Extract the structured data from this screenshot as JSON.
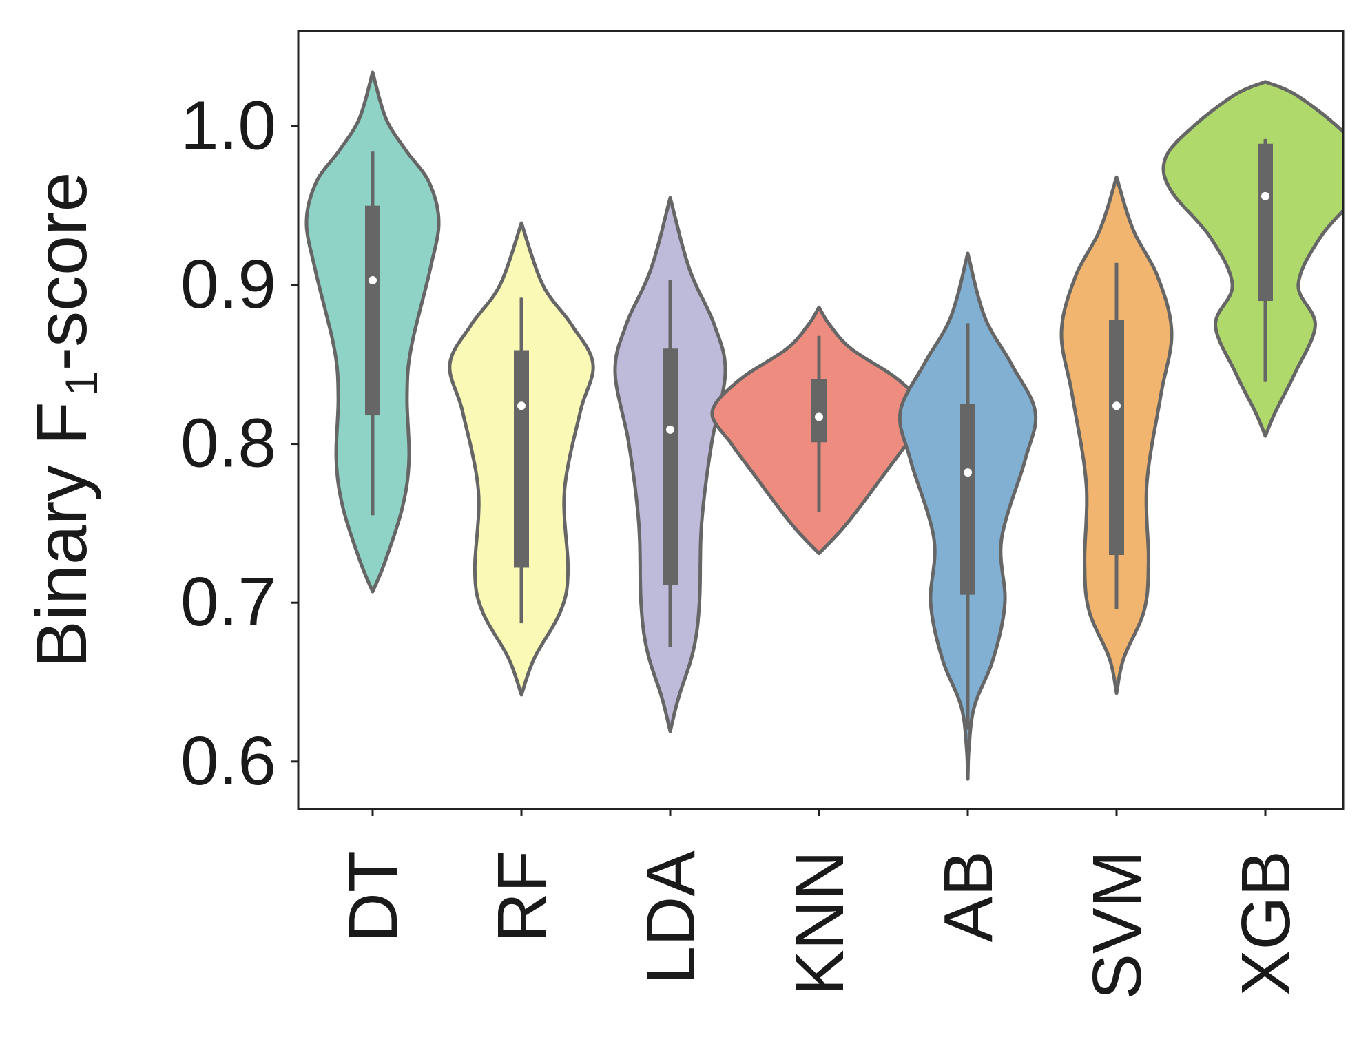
{
  "chart_data": {
    "type": "violin",
    "title": "",
    "xlabel": "",
    "ylabel": "Binary F",
    "ylabel_subscript": "1",
    "ylabel_suffix": "-score",
    "ylim": [
      0.57,
      1.06
    ],
    "yticks": [
      0.6,
      0.7,
      0.8,
      0.9,
      1.0
    ],
    "ytick_labels": [
      "0.6",
      "0.7",
      "0.8",
      "0.9",
      "1.0"
    ],
    "grid": false,
    "categories": [
      "DT",
      "RF",
      "LDA",
      "KNN",
      "AB",
      "SVM",
      "XGB"
    ],
    "series": [
      {
        "category": "DT",
        "color": "#8fd3c7",
        "min": 0.755,
        "q1": 0.818,
        "median": 0.903,
        "q3": 0.95,
        "max": 0.984,
        "range": [
          0.707,
          1.034
        ],
        "profile": [
          [
            0.707,
            0
          ],
          [
            0.725,
            0.18
          ],
          [
            0.76,
            0.45
          ],
          [
            0.79,
            0.55
          ],
          [
            0.83,
            0.52
          ],
          [
            0.86,
            0.58
          ],
          [
            0.91,
            0.87
          ],
          [
            0.94,
            1.0
          ],
          [
            0.965,
            0.85
          ],
          [
            0.985,
            0.5
          ],
          [
            1.005,
            0.2
          ],
          [
            1.034,
            0
          ]
        ]
      },
      {
        "category": "RF",
        "color": "#fafab6",
        "min": 0.687,
        "q1": 0.722,
        "median": 0.824,
        "q3": 0.859,
        "max": 0.892,
        "range": [
          0.642,
          0.939
        ],
        "profile": [
          [
            0.642,
            0
          ],
          [
            0.665,
            0.18
          ],
          [
            0.695,
            0.55
          ],
          [
            0.72,
            0.65
          ],
          [
            0.77,
            0.6
          ],
          [
            0.82,
            0.82
          ],
          [
            0.85,
            1.0
          ],
          [
            0.875,
            0.7
          ],
          [
            0.9,
            0.3
          ],
          [
            0.939,
            0
          ]
        ]
      },
      {
        "category": "LDA",
        "color": "#bebada",
        "min": 0.672,
        "q1": 0.711,
        "median": 0.809,
        "q3": 0.86,
        "max": 0.903,
        "range": [
          0.619,
          0.955
        ],
        "profile": [
          [
            0.619,
            0
          ],
          [
            0.64,
            0.15
          ],
          [
            0.67,
            0.42
          ],
          [
            0.7,
            0.53
          ],
          [
            0.75,
            0.57
          ],
          [
            0.8,
            0.75
          ],
          [
            0.845,
            1.0
          ],
          [
            0.875,
            0.8
          ],
          [
            0.91,
            0.35
          ],
          [
            0.955,
            0
          ]
        ]
      },
      {
        "category": "KNN",
        "color": "#ee8c80",
        "min": 0.757,
        "q1": 0.801,
        "median": 0.817,
        "q3": 0.841,
        "max": 0.868,
        "range": [
          0.731,
          0.886
        ],
        "profile": [
          [
            0.731,
            0
          ],
          [
            0.745,
            0.2
          ],
          [
            0.76,
            0.38
          ],
          [
            0.78,
            0.6
          ],
          [
            0.8,
            0.82
          ],
          [
            0.82,
            1.0
          ],
          [
            0.84,
            0.75
          ],
          [
            0.86,
            0.3
          ],
          [
            0.875,
            0.1
          ],
          [
            0.886,
            0
          ]
        ]
      },
      {
        "category": "AB",
        "color": "#81b0d3",
        "min": 0.62,
        "q1": 0.705,
        "median": 0.782,
        "q3": 0.825,
        "max": 0.876,
        "range": [
          0.589,
          0.92
        ],
        "profile": [
          [
            0.589,
            0
          ],
          [
            0.61,
            0.02
          ],
          [
            0.635,
            0.1
          ],
          [
            0.665,
            0.38
          ],
          [
            0.7,
            0.55
          ],
          [
            0.74,
            0.5
          ],
          [
            0.79,
            0.85
          ],
          [
            0.82,
            1.0
          ],
          [
            0.85,
            0.65
          ],
          [
            0.88,
            0.25
          ],
          [
            0.92,
            0
          ]
        ]
      },
      {
        "category": "SVM",
        "color": "#f2b56f",
        "min": 0.696,
        "q1": 0.73,
        "median": 0.824,
        "q3": 0.878,
        "max": 0.914,
        "range": [
          0.643,
          0.968
        ],
        "profile": [
          [
            0.643,
            0
          ],
          [
            0.665,
            0.13
          ],
          [
            0.695,
            0.5
          ],
          [
            0.725,
            0.58
          ],
          [
            0.775,
            0.55
          ],
          [
            0.83,
            0.8
          ],
          [
            0.87,
            1.0
          ],
          [
            0.905,
            0.75
          ],
          [
            0.935,
            0.3
          ],
          [
            0.968,
            0
          ]
        ]
      },
      {
        "category": "XGB",
        "color": "#b0d96c",
        "min": 0.839,
        "q1": 0.89,
        "median": 0.956,
        "q3": 0.989,
        "max": 0.992,
        "range": [
          0.805,
          1.028
        ],
        "profile": [
          [
            0.805,
            0
          ],
          [
            0.82,
            0.1
          ],
          [
            0.845,
            0.3
          ],
          [
            0.875,
            0.5
          ],
          [
            0.9,
            0.33
          ],
          [
            0.93,
            0.55
          ],
          [
            0.96,
            0.95
          ],
          [
            0.98,
            1.0
          ],
          [
            1.0,
            0.72
          ],
          [
            1.02,
            0.3
          ],
          [
            1.028,
            0
          ]
        ]
      }
    ]
  }
}
